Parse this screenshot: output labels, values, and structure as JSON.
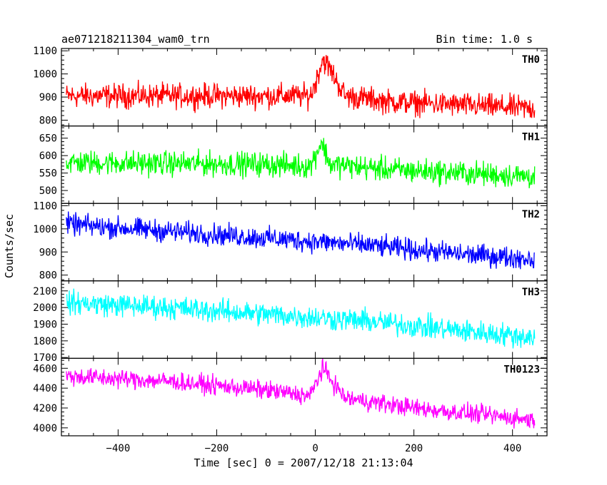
{
  "header": {
    "left": "ae071218211304_wam0_trn",
    "right": "Bin time: 1.0 s"
  },
  "chart_data": {
    "type": "line",
    "xlabel": "Time [sec] 0 = 2007/12/18 21:13:04",
    "ylabel": "Counts/sec",
    "xlim": [
      -515,
      470
    ],
    "xticks": [
      -400,
      -200,
      0,
      200,
      400
    ],
    "bin_time_s": 1.0,
    "panels": [
      {
        "name": "TH0",
        "color": "#ff0000",
        "ylim": [
          775,
          1110
        ],
        "yticks": [
          800,
          900,
          1000,
          1100
        ],
        "trend_points": [
          [
            -505,
            905
          ],
          [
            -100,
            905
          ],
          [
            -10,
            905
          ],
          [
            0,
            960
          ],
          [
            15,
            1065
          ],
          [
            30,
            1020
          ],
          [
            60,
            905
          ],
          [
            150,
            880
          ],
          [
            445,
            850
          ]
        ],
        "noise_amplitude": 45
      },
      {
        "name": "TH1",
        "color": "#00ff00",
        "ylim": [
          463,
          685
        ],
        "yticks": [
          500,
          550,
          600,
          650
        ],
        "trend_points": [
          [
            -505,
            580
          ],
          [
            -100,
            575
          ],
          [
            -10,
            570
          ],
          [
            0,
            600
          ],
          [
            12,
            640
          ],
          [
            30,
            575
          ],
          [
            150,
            560
          ],
          [
            445,
            540
          ]
        ],
        "noise_amplitude": 30
      },
      {
        "name": "TH2",
        "color": "#0000ff",
        "ylim": [
          775,
          1110
        ],
        "yticks": [
          800,
          900,
          1000,
          1100
        ],
        "trend_points": [
          [
            -505,
            1020
          ],
          [
            -300,
            990
          ],
          [
            -100,
            960
          ],
          [
            100,
            930
          ],
          [
            300,
            890
          ],
          [
            445,
            870
          ]
        ],
        "noise_amplitude": 40
      },
      {
        "name": "TH3",
        "color": "#00ffff",
        "ylim": [
          1695,
          2160
        ],
        "yticks": [
          1700,
          1800,
          1900,
          2000,
          2100
        ],
        "trend_points": [
          [
            -505,
            2030
          ],
          [
            -300,
            2000
          ],
          [
            -100,
            1960
          ],
          [
            100,
            1920
          ],
          [
            300,
            1860
          ],
          [
            445,
            1820
          ]
        ],
        "noise_amplitude": 60
      },
      {
        "name": "TH0123",
        "color": "#ff00ff",
        "ylim": [
          3920,
          4700
        ],
        "yticks": [
          4000,
          4200,
          4400,
          4600
        ],
        "trend_points": [
          [
            -505,
            4520
          ],
          [
            -300,
            4470
          ],
          [
            -100,
            4380
          ],
          [
            -10,
            4320
          ],
          [
            0,
            4440
          ],
          [
            15,
            4600
          ],
          [
            30,
            4500
          ],
          [
            60,
            4300
          ],
          [
            200,
            4200
          ],
          [
            445,
            4080
          ]
        ],
        "noise_amplitude": 80
      }
    ]
  }
}
